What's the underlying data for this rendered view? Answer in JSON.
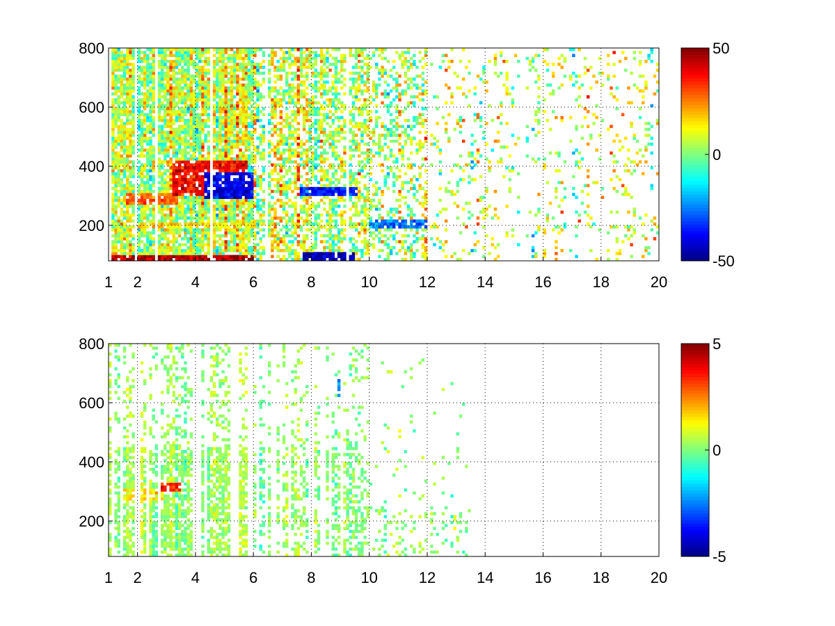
{
  "figure": {
    "background": "#ffffff"
  },
  "chart_data": [
    {
      "type": "heatmap",
      "title": "",
      "xlabel": "",
      "ylabel": "",
      "xlim": [
        1,
        20
      ],
      "ylim": [
        80,
        800
      ],
      "x_ticks": [
        1,
        2,
        4,
        6,
        8,
        10,
        12,
        14,
        16,
        18,
        20
      ],
      "x_tick_labels": [
        "1",
        "2",
        "4",
        "6",
        "8",
        "10",
        "12",
        "14",
        "16",
        "18",
        "20"
      ],
      "y_ticks": [
        200,
        400,
        600,
        800
      ],
      "y_tick_labels": [
        "200",
        "400",
        "600",
        "800"
      ],
      "grid": true,
      "grid_style": "dotted",
      "colormap": "jet",
      "clim": [
        -50,
        50
      ],
      "colorbar_ticks": [
        -50,
        0,
        50
      ],
      "colorbar_tick_labels": [
        "-50",
        "0",
        "50"
      ],
      "colorbar_position": "right",
      "missing_value_color": "#ffffff",
      "value_bands": [
        {
          "x": [
            1,
            6
          ],
          "y": [
            80,
            100
          ],
          "value": 45
        },
        {
          "x": [
            1.6,
            3.4
          ],
          "y": [
            270,
            310
          ],
          "value": 28
        },
        {
          "x": [
            3.2,
            5.8
          ],
          "y": [
            300,
            420
          ],
          "value": 38
        },
        {
          "x": [
            4.3,
            6.0
          ],
          "y": [
            290,
            380
          ],
          "value": -40
        },
        {
          "x": [
            7.6,
            9.6
          ],
          "y": [
            300,
            330
          ],
          "value": -35
        },
        {
          "x": [
            7.7,
            9.5
          ],
          "y": [
            80,
            110
          ],
          "value": -45
        },
        {
          "x": [
            1.8,
            6.0
          ],
          "y": [
            190,
            210
          ],
          "value": 15
        },
        {
          "x": [
            10,
            12
          ],
          "y": [
            190,
            220
          ],
          "value": -25
        }
      ]
    },
    {
      "type": "heatmap",
      "title": "",
      "xlabel": "",
      "ylabel": "",
      "xlim": [
        1,
        20
      ],
      "ylim": [
        80,
        800
      ],
      "x_ticks": [
        1,
        2,
        4,
        6,
        8,
        10,
        12,
        14,
        16,
        18,
        20
      ],
      "x_tick_labels": [
        "1",
        "2",
        "4",
        "6",
        "8",
        "10",
        "12",
        "14",
        "16",
        "18",
        "20"
      ],
      "y_ticks": [
        200,
        400,
        600,
        800
      ],
      "y_tick_labels": [
        "200",
        "400",
        "600",
        "800"
      ],
      "grid": true,
      "grid_style": "dotted",
      "colormap": "jet",
      "clim": [
        -5,
        5
      ],
      "colorbar_ticks": [
        -5,
        0,
        5
      ],
      "colorbar_tick_labels": [
        "-5",
        "0",
        "5"
      ],
      "colorbar_position": "right",
      "missing_value_color": "#ffffff",
      "value_bands": [
        {
          "x": [
            1.5,
            2.9
          ],
          "y": [
            270,
            310
          ],
          "value": 1.5
        },
        {
          "x": [
            2.8,
            3.5
          ],
          "y": [
            300,
            330
          ],
          "value": 3.5
        },
        {
          "x": [
            1.4,
            1.5
          ],
          "y": [
            480,
            780
          ],
          "value": 4.5
        },
        {
          "x": [
            8.9,
            9.1
          ],
          "y": [
            620,
            680
          ],
          "value": -2
        }
      ]
    }
  ]
}
